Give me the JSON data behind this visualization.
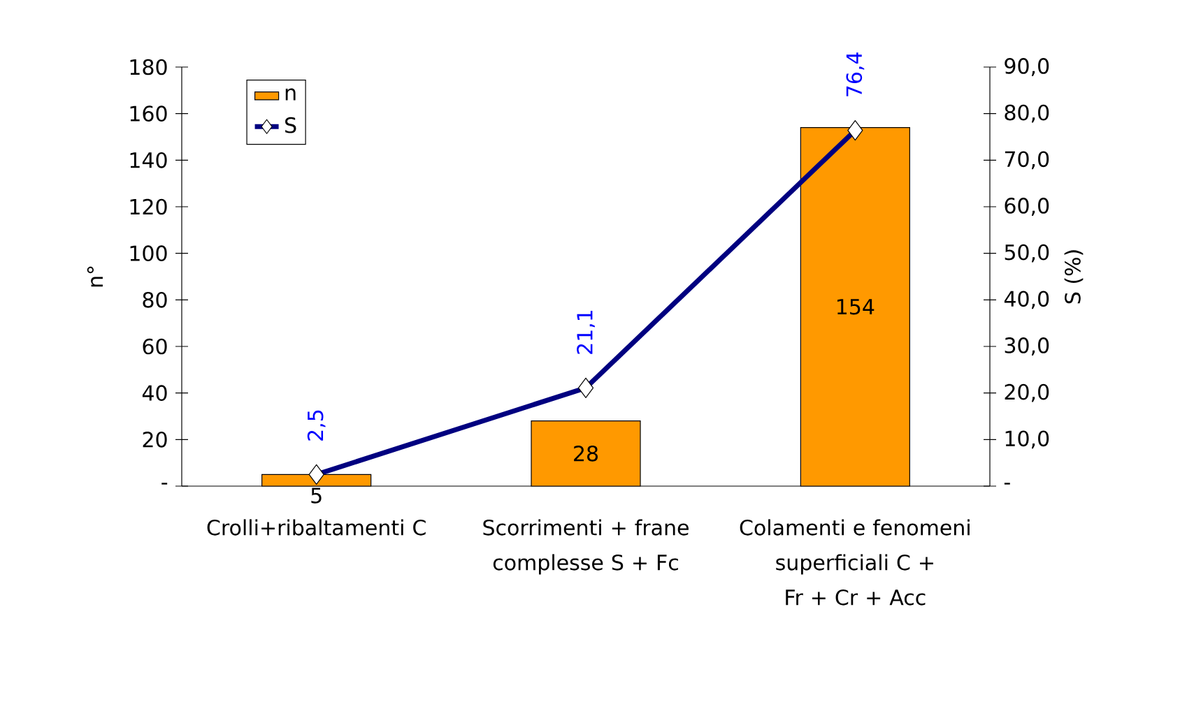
{
  "chart_data": {
    "type": "bar",
    "categories": [
      "Crolli+ribaltamenti C",
      "Scorrimenti + frane complesse S + Fc",
      "Colamenti e fenomeni superficiali C + Fr + Cr + Acc"
    ],
    "series": [
      {
        "name": "n",
        "color": "#ff9900",
        "values": [
          5,
          28,
          154
        ],
        "value_labels": [
          "5",
          "28",
          "154"
        ]
      },
      {
        "name": "S",
        "type": "line",
        "axis": "y2",
        "color": "#000080",
        "marker": "diamond",
        "values": [
          2.5,
          21.1,
          76.4
        ],
        "value_labels": [
          "2,5",
          "21,1",
          "76,4"
        ]
      }
    ],
    "ylabel": "n°",
    "y2label": "S (%)",
    "ylim": [
      0,
      180
    ],
    "yticks": [
      {
        "value": 0,
        "label": "-"
      },
      20,
      40,
      60,
      80,
      100,
      120,
      140,
      160,
      180
    ],
    "y2lim": [
      0,
      90
    ],
    "y2ticks": [
      {
        "value": 0,
        "label": "-"
      },
      {
        "value": 10,
        "label": "10,0"
      },
      {
        "value": 20,
        "label": "20,0"
      },
      {
        "value": 30,
        "label": "30,0"
      },
      {
        "value": 40,
        "label": "40,0"
      },
      {
        "value": 50,
        "label": "50,0"
      },
      {
        "value": 60,
        "label": "60,0"
      },
      {
        "value": 70,
        "label": "70,0"
      },
      {
        "value": 80,
        "label": "80,0"
      },
      {
        "value": 90,
        "label": "90,0"
      }
    ],
    "legend": "top left"
  }
}
